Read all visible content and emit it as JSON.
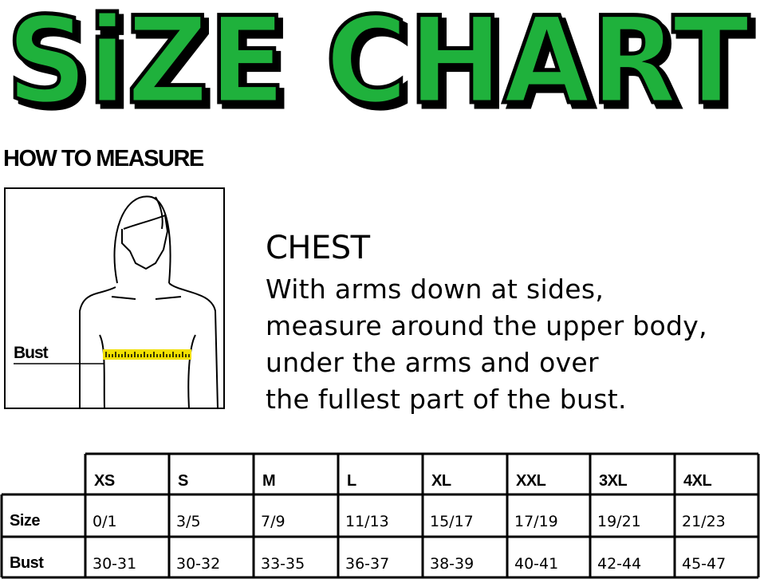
{
  "title": {
    "text": "SIZE CHART",
    "fill_color": "#1fb13c",
    "outline_color": "#000000"
  },
  "how_to_measure": {
    "heading": "HOW TO MEASURE",
    "figure_label": "Bust",
    "tape_color": "#f2e000"
  },
  "chest": {
    "heading": "CHEST",
    "lines": [
      "With arms down at sides,",
      "measure around the upper body,",
      "under the arms and over",
      "the fullest part of the bust."
    ]
  },
  "table": {
    "columns": [
      "XS",
      "S",
      "M",
      "L",
      "XL",
      "XXL",
      "3XL",
      "4XL"
    ],
    "rows": [
      {
        "label": "Size",
        "values": [
          "0/1",
          "3/5",
          "7/9",
          "11/13",
          "15/17",
          "17/19",
          "19/21",
          "21/23"
        ]
      },
      {
        "label": "Bust",
        "values": [
          "30-31",
          "30-32",
          "33-35",
          "36-37",
          "38-39",
          "40-41",
          "42-44",
          "45-47"
        ]
      }
    ]
  }
}
